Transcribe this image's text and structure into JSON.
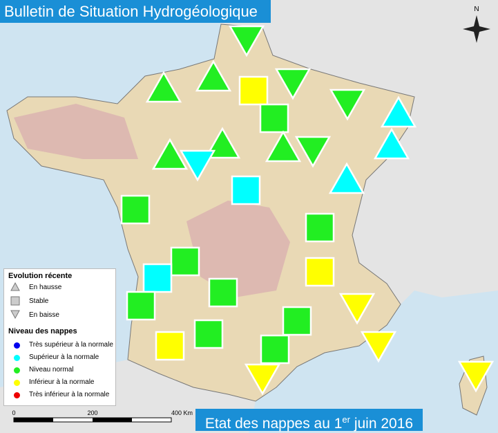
{
  "header": {
    "title": "Bulletin de Situation Hydrogéologique"
  },
  "compass": "N",
  "legend": {
    "trend_title": "Evolution récente",
    "trends": [
      "En hausse",
      "Stable",
      "En baisse"
    ],
    "level_title": "Niveau des nappes",
    "levels": [
      "Très supérieur à la normale",
      "Supérieur à la normale",
      "Niveau normal",
      "Inférieur à la normale",
      "Très inférieur à la normale"
    ]
  },
  "scale": {
    "labels": [
      "0",
      "200",
      "400 Km"
    ]
  },
  "footer": {
    "text": "Etat des nappes au 1",
    "superscript": "er",
    "date": " juin 2016"
  }
}
